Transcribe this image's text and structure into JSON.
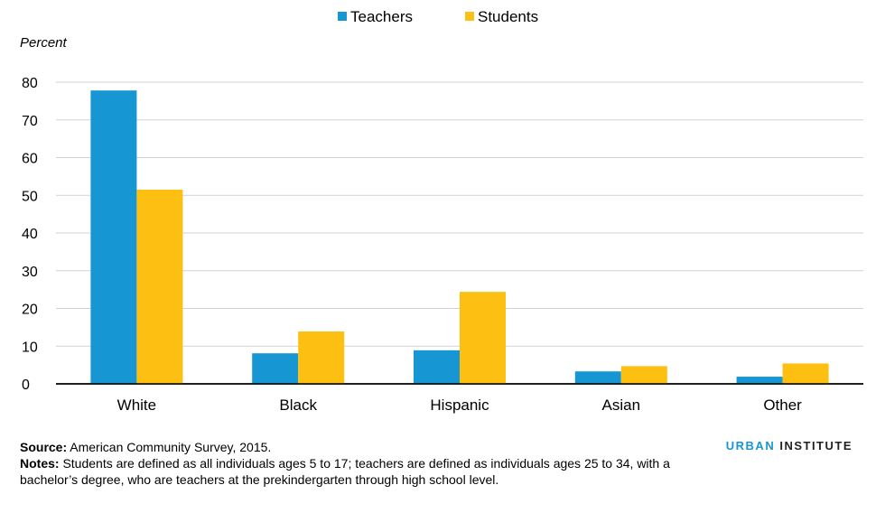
{
  "chart_data": {
    "type": "bar",
    "categories": [
      "White",
      "Black",
      "Hispanic",
      "Asian",
      "Other"
    ],
    "series": [
      {
        "name": "Teachers",
        "color": "#1696d2",
        "values": [
          77.8,
          8.1,
          8.9,
          3.3,
          1.9
        ]
      },
      {
        "name": "Students",
        "color": "#fdbf11",
        "values": [
          51.5,
          13.9,
          24.4,
          4.7,
          5.4
        ]
      }
    ],
    "ylabel": "Percent",
    "ylim": [
      0,
      80
    ],
    "yticks": [
      0,
      10,
      20,
      30,
      40,
      50,
      60,
      70,
      80
    ],
    "grid": true,
    "legend": "top-center"
  },
  "source": {
    "label": "Source:",
    "text": " American Community Survey, 2015."
  },
  "notes": {
    "label": "Notes:",
    "text": " Students are defined as all individuals ages 5 to 17; teachers are defined as individuals ages 25 to 34, with a bachelor’s degree, who are teachers at the prekindergarten through high school level."
  },
  "brand": {
    "part1": "URBAN",
    "part2": " INSTITUTE"
  }
}
